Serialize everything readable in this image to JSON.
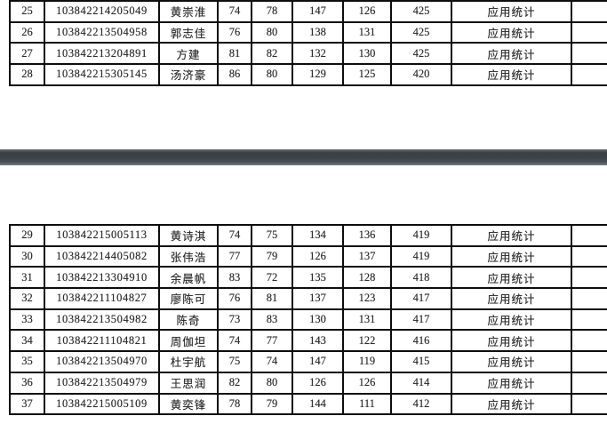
{
  "document": {
    "major_label": "应用统计",
    "columns": [
      "index",
      "id",
      "name",
      "score1",
      "score2",
      "score3",
      "score4",
      "total",
      "major",
      "blank"
    ],
    "pages": [
      {
        "name": "page-1",
        "rows": [
          [
            "25",
            "103842214205049",
            "黄崇淮",
            "74",
            "78",
            "147",
            "126",
            "425",
            "应用统计",
            ""
          ],
          [
            "26",
            "103842213504958",
            "郭志佳",
            "76",
            "80",
            "138",
            "131",
            "425",
            "应用统计",
            ""
          ],
          [
            "27",
            "103842213204891",
            "方建",
            "81",
            "82",
            "132",
            "130",
            "425",
            "应用统计",
            ""
          ],
          [
            "28",
            "103842215305145",
            "汤济豪",
            "86",
            "80",
            "129",
            "125",
            "420",
            "应用统计",
            ""
          ]
        ]
      },
      {
        "name": "page-2",
        "rows": [
          [
            "29",
            "103842215005113",
            "黄诗淇",
            "74",
            "75",
            "134",
            "136",
            "419",
            "应用统计",
            ""
          ],
          [
            "30",
            "103842214405082",
            "张伟浩",
            "77",
            "79",
            "126",
            "137",
            "419",
            "应用统计",
            ""
          ],
          [
            "31",
            "103842213304910",
            "余晨帆",
            "83",
            "72",
            "135",
            "128",
            "418",
            "应用统计",
            ""
          ],
          [
            "32",
            "103842211104827",
            "廖陈可",
            "76",
            "81",
            "137",
            "123",
            "417",
            "应用统计",
            ""
          ],
          [
            "33",
            "103842213504982",
            "陈奇",
            "73",
            "83",
            "130",
            "131",
            "417",
            "应用统计",
            ""
          ],
          [
            "34",
            "103842211104821",
            "周伽坦",
            "74",
            "77",
            "143",
            "122",
            "416",
            "应用统计",
            ""
          ],
          [
            "35",
            "103842213504970",
            "杜宇航",
            "75",
            "74",
            "147",
            "119",
            "415",
            "应用统计",
            ""
          ],
          [
            "36",
            "103842213504979",
            "王思润",
            "82",
            "80",
            "126",
            "126",
            "414",
            "应用统计",
            ""
          ],
          [
            "37",
            "103842215005109",
            "黄奕锋",
            "78",
            "79",
            "144",
            "111",
            "412",
            "应用统计",
            ""
          ]
        ]
      }
    ]
  }
}
